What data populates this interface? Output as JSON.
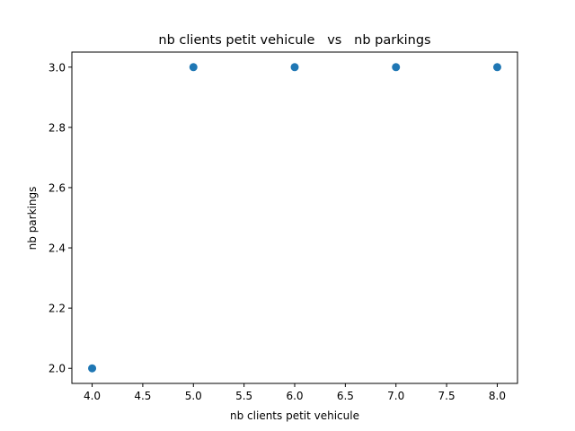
{
  "chart_data": {
    "type": "scatter",
    "title": "nb clients petit vehicule   vs   nb parkings",
    "xlabel": "nb clients petit vehicule",
    "ylabel": "nb parkings",
    "xlim": [
      3.8,
      8.2
    ],
    "ylim": [
      1.95,
      3.05
    ],
    "xticks": [
      "4.0",
      "4.5",
      "5.0",
      "5.5",
      "6.0",
      "6.5",
      "7.0",
      "7.5",
      "8.0"
    ],
    "yticks": [
      "2.0",
      "2.2",
      "2.4",
      "2.6",
      "2.8",
      "3.0"
    ],
    "grid": false,
    "marker_color": "#1f77b4",
    "points": [
      {
        "x": 4,
        "y": 2
      },
      {
        "x": 5,
        "y": 3
      },
      {
        "x": 6,
        "y": 3
      },
      {
        "x": 7,
        "y": 3
      },
      {
        "x": 8,
        "y": 3
      }
    ]
  }
}
